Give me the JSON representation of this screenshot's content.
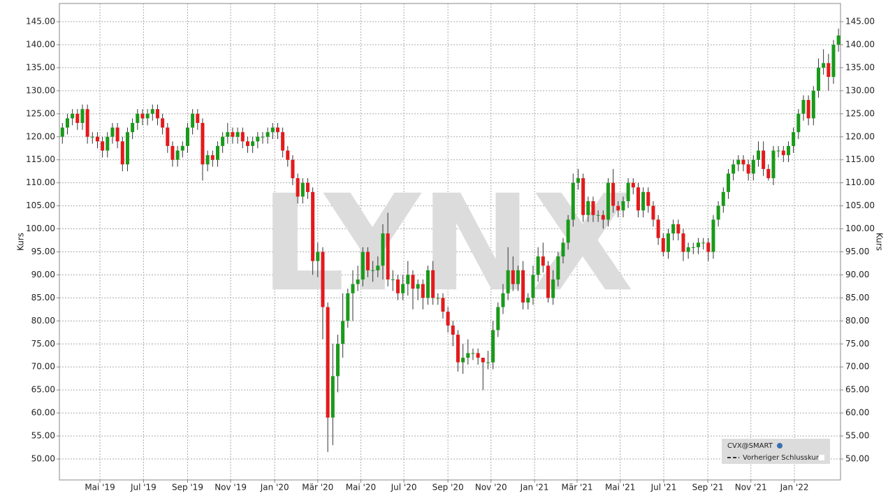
{
  "chart_data": {
    "type": "candlestick",
    "y_label": "Kurs",
    "watermark": "LYNX",
    "legend": {
      "symbol": "CVX@SMART",
      "items": [
        "Vorheriger Schlusskurs"
      ]
    },
    "up_color": "#1a9a1a",
    "down_color": "#e31a1c",
    "grid": true,
    "xlim": [
      -0.6,
      155.4
    ],
    "xticks": [
      {
        "value": 7.5,
        "label": "Mai '19"
      },
      {
        "value": 16.2,
        "label": "Jul '19"
      },
      {
        "value": 25,
        "label": "Sep '19"
      },
      {
        "value": 33.6,
        "label": "Nov '19"
      },
      {
        "value": 42.4,
        "label": "Jan '20"
      },
      {
        "value": 51,
        "label": "Mär '20"
      },
      {
        "value": 59.6,
        "label": "Mai '20"
      },
      {
        "value": 68.2,
        "label": "Jul '20"
      },
      {
        "value": 77,
        "label": "Sep '20"
      },
      {
        "value": 85.6,
        "label": "Nov '20"
      },
      {
        "value": 94.3,
        "label": "Jan '21"
      },
      {
        "value": 102.8,
        "label": "Mär '21"
      },
      {
        "value": 111.4,
        "label": "Mai '21"
      },
      {
        "value": 120.1,
        "label": "Jul '21"
      },
      {
        "value": 128.9,
        "label": "Sep '21"
      },
      {
        "value": 137.5,
        "label": "Nov '21"
      },
      {
        "value": 146.2,
        "label": "Jan '22"
      }
    ],
    "ylim": [
      45.45,
      148.95
    ],
    "yticks": [
      {
        "value": 50,
        "label": "50.00"
      },
      {
        "value": 55,
        "label": "55.00"
      },
      {
        "value": 60,
        "label": "60.00"
      },
      {
        "value": 65,
        "label": "65.00"
      },
      {
        "value": 70,
        "label": "70.00"
      },
      {
        "value": 75,
        "label": "75.00"
      },
      {
        "value": 80,
        "label": "80.00"
      },
      {
        "value": 85,
        "label": "85.00"
      },
      {
        "value": 90,
        "label": "90.00"
      },
      {
        "value": 95,
        "label": "95.00"
      },
      {
        "value": 100,
        "label": "100.00"
      },
      {
        "value": 105,
        "label": "105.00"
      },
      {
        "value": 110,
        "label": "110.00"
      },
      {
        "value": 115,
        "label": "115.00"
      },
      {
        "value": 120,
        "label": "120.00"
      },
      {
        "value": 125,
        "label": "125.00"
      },
      {
        "value": 130,
        "label": "130.00"
      },
      {
        "value": 135,
        "label": "135.00"
      },
      {
        "value": 140,
        "label": "140.00"
      },
      {
        "value": 145,
        "label": "145.00"
      }
    ],
    "open": [
      120,
      122,
      124,
      125,
      123,
      126,
      120,
      120,
      119,
      117,
      120,
      122,
      119,
      114,
      121,
      123,
      125,
      124,
      125,
      126,
      124,
      122,
      118,
      115,
      117,
      118,
      122,
      125,
      123,
      114,
      116,
      115,
      118,
      120,
      121,
      120,
      121,
      119,
      118,
      119,
      120,
      120,
      121,
      122,
      121,
      117,
      115,
      111,
      107,
      110,
      108,
      93,
      95,
      83,
      59,
      68,
      75,
      80,
      86,
      88,
      89,
      95,
      91,
      91,
      92,
      99,
      89,
      89,
      86,
      88,
      90,
      87,
      88,
      85,
      91,
      85,
      85,
      82,
      79,
      77,
      71,
      72,
      73,
      73,
      72,
      71,
      71,
      78,
      83,
      86,
      91,
      88,
      91,
      84,
      85,
      90,
      94,
      92,
      85,
      89,
      94,
      97,
      102,
      110,
      111,
      103,
      106,
      103,
      103,
      102,
      110,
      105,
      104,
      106,
      110,
      109,
      104,
      108,
      105,
      102,
      98,
      95,
      99,
      101,
      99,
      95,
      96,
      96,
      97,
      97,
      95,
      102,
      105,
      108,
      112,
      114,
      115,
      114,
      112,
      115,
      117,
      113,
      111,
      117,
      117,
      116,
      118,
      121,
      125,
      128,
      124,
      130,
      135,
      136,
      133,
      140
    ],
    "high": [
      123,
      125,
      126,
      126,
      127,
      127,
      121,
      121,
      120,
      121,
      123,
      123,
      120,
      122,
      124,
      126,
      126,
      126,
      127,
      127,
      125,
      123,
      119,
      118,
      119,
      123,
      126,
      126,
      124,
      117,
      117,
      119,
      121,
      123,
      122,
      122,
      122,
      120,
      120,
      121,
      121,
      122,
      123,
      123,
      122,
      118,
      116,
      112,
      111,
      111,
      109,
      97,
      96,
      84,
      75,
      77,
      86,
      87,
      91,
      92,
      96,
      96,
      93,
      94,
      101,
      103.5,
      91,
      90,
      90,
      93,
      91,
      89,
      89,
      92,
      93,
      86,
      86,
      83,
      80,
      78,
      75,
      76,
      74,
      74,
      72,
      73.5,
      80,
      84,
      88,
      96,
      94,
      92,
      93,
      86,
      92,
      96,
      97,
      93,
      91,
      95,
      98,
      103,
      112,
      113,
      112,
      107,
      107,
      104,
      104,
      111,
      113,
      106,
      107,
      111,
      111,
      110,
      109,
      109,
      106,
      103,
      99,
      100,
      102,
      102,
      100,
      97,
      97,
      98,
      98,
      98,
      103,
      106,
      109,
      113,
      115,
      116,
      116,
      115,
      116,
      119,
      119,
      114,
      118,
      118,
      118,
      119,
      122,
      126,
      129,
      129,
      131,
      137,
      139,
      138,
      141,
      143.5
    ],
    "low": [
      118.5,
      120.5,
      122.5,
      121.5,
      121.5,
      118.5,
      118.5,
      117.5,
      115.5,
      115.5,
      118.5,
      117.5,
      112.5,
      112.5,
      119.5,
      121.5,
      122.5,
      122.5,
      123.5,
      122.5,
      120.5,
      116.5,
      113.5,
      113.5,
      115.5,
      116.5,
      120.5,
      121.5,
      110.5,
      112.5,
      113.5,
      113.5,
      116.5,
      118.5,
      118.5,
      118.5,
      117.5,
      116.5,
      116.5,
      117.5,
      118.5,
      118.5,
      119.5,
      119.5,
      115.5,
      113.5,
      109.5,
      105.5,
      105.5,
      106.5,
      90,
      89.5,
      76,
      51.5,
      53,
      64.5,
      72,
      78.5,
      80,
      86.5,
      87.5,
      89.5,
      88.5,
      89.5,
      89,
      87.5,
      86.5,
      84.5,
      84.5,
      85.5,
      82.5,
      84.5,
      82.5,
      83.5,
      83.5,
      83.5,
      80.5,
      77.5,
      74.5,
      69,
      68.5,
      70.5,
      71.5,
      70.5,
      65,
      69.5,
      69.5,
      76.5,
      81.5,
      84.5,
      86.5,
      86.5,
      82.5,
      82.5,
      83.5,
      88.5,
      90.5,
      84,
      83.5,
      87.5,
      92.5,
      95.5,
      100.5,
      108.5,
      101.5,
      101.5,
      101.5,
      101.5,
      100,
      100.5,
      103.5,
      102.5,
      102.5,
      104.5,
      107.5,
      102.5,
      102.5,
      103.5,
      100.5,
      96.5,
      94,
      93.5,
      97.5,
      97.5,
      93,
      93.5,
      94.5,
      94.5,
      95.5,
      93,
      93.5,
      100.5,
      103.5,
      106.5,
      110.5,
      112.5,
      112.5,
      110.5,
      110.5,
      113.5,
      111.5,
      110.5,
      109.5,
      115.5,
      114.5,
      114.5,
      116.5,
      119.5,
      123.5,
      122.5,
      122.5,
      128.5,
      133.5,
      130,
      131.5,
      138.5
    ],
    "close": [
      122,
      124,
      125,
      123,
      126,
      120,
      120,
      119,
      117,
      120,
      122,
      119,
      114,
      121,
      123,
      125,
      124,
      125,
      126,
      124,
      122,
      118,
      115,
      117,
      118,
      122,
      125,
      123,
      114,
      116,
      115,
      118,
      120,
      121,
      120,
      121,
      119,
      118,
      119,
      120,
      120,
      121,
      122,
      121,
      117,
      115,
      111,
      107,
      110,
      108,
      93,
      95,
      83,
      59,
      68,
      75,
      80,
      86,
      88,
      89,
      95,
      91,
      91,
      92,
      99,
      89,
      89,
      86,
      88,
      90,
      87,
      88,
      85,
      91,
      85,
      85,
      82,
      79,
      77,
      71,
      72,
      73,
      73,
      72,
      71,
      71,
      78,
      83,
      86,
      91,
      88,
      91,
      84,
      85,
      90,
      94,
      92,
      85,
      89,
      94,
      97,
      102,
      110,
      111,
      103,
      106,
      103,
      103,
      102,
      110,
      105,
      104,
      106,
      110,
      109,
      104,
      108,
      105,
      102,
      98,
      95,
      99,
      101,
      99,
      95,
      96,
      96,
      97,
      97,
      95,
      102,
      105,
      108,
      112,
      114,
      115,
      114,
      112,
      115,
      117,
      113,
      111,
      117,
      117,
      116,
      118,
      121,
      125,
      128,
      124,
      130,
      135,
      136,
      133,
      140,
      142
    ]
  }
}
